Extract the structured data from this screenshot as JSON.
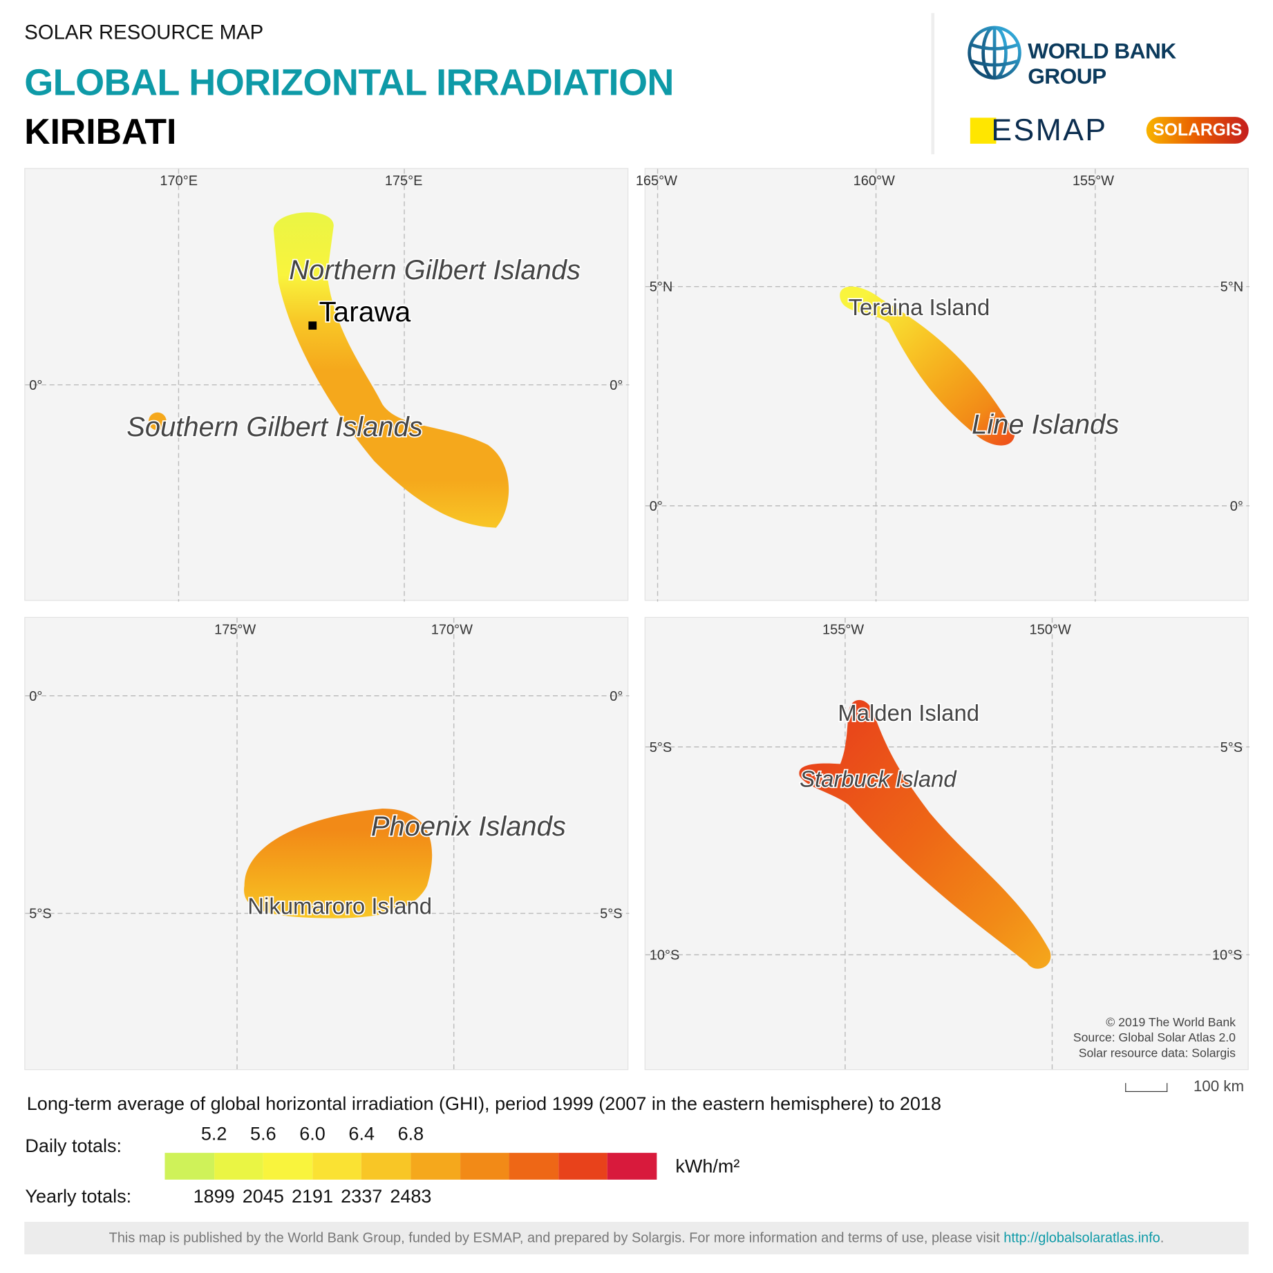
{
  "header": {
    "subtitle": "SOLAR RESOURCE MAP",
    "title": "GLOBAL HORIZONTAL IRRADIATION",
    "country": "KIRIBATI"
  },
  "logos": {
    "world_bank": "WORLD BANK GROUP",
    "esmap": "ESMAP",
    "solargis": "SOLARGIS"
  },
  "maps": [
    {
      "ticks_x": [
        "170°E",
        "175°E"
      ],
      "ticks_y": [
        "0°",
        "0°"
      ],
      "labels": [
        "Northern Gilbert Islands",
        "Tarawa",
        "Southern Gilbert Islands"
      ]
    },
    {
      "ticks_x": [
        "165°W",
        "160°W",
        "155°W"
      ],
      "ticks_y": [
        "5°N",
        "5°N",
        "0°",
        "0°"
      ],
      "labels": [
        "Teraina Island",
        "Line Islands"
      ]
    },
    {
      "ticks_x": [
        "175°W",
        "170°W"
      ],
      "ticks_y": [
        "0°",
        "0°",
        "5°S",
        "5°S"
      ],
      "labels": [
        "Phoenix Islands",
        "Nikumaroro Island"
      ]
    },
    {
      "ticks_x": [
        "155°W",
        "150°W"
      ],
      "ticks_y": [
        "5°S",
        "5°S",
        "10°S",
        "10°S"
      ],
      "labels": [
        "Malden Island",
        "Starbuck Island"
      ]
    }
  ],
  "attribution": [
    "© 2019 The World Bank",
    "Source: Global Solar Atlas 2.0",
    "Solar resource data: Solargis"
  ],
  "scale_bar": "100 km",
  "legend": {
    "caption": "Long-term average of global horizontal irradiation (GHI), period 1999 (2007 in the eastern hemisphere) to 2018",
    "daily_label": "Daily totals:",
    "yearly_label": "Yearly totals:",
    "unit": "kWh/m²",
    "daily": [
      "5.2",
      "5.6",
      "6.0",
      "6.4",
      "6.8"
    ],
    "yearly": [
      "1899",
      "2045",
      "2191",
      "2337",
      "2483"
    ],
    "colors": [
      "#cff259",
      "#eaf544",
      "#f9f43d",
      "#fae233",
      "#f8c626",
      "#f5a81c",
      "#f28a17",
      "#ee6716",
      "#e8421b",
      "#d81a3c"
    ]
  },
  "footer": {
    "text": "This map is published by the World Bank Group, funded by ESMAP, and prepared by Solargis. For more information and terms of use, please visit ",
    "link": "http://globalsolaratlas.info",
    "end": "."
  }
}
